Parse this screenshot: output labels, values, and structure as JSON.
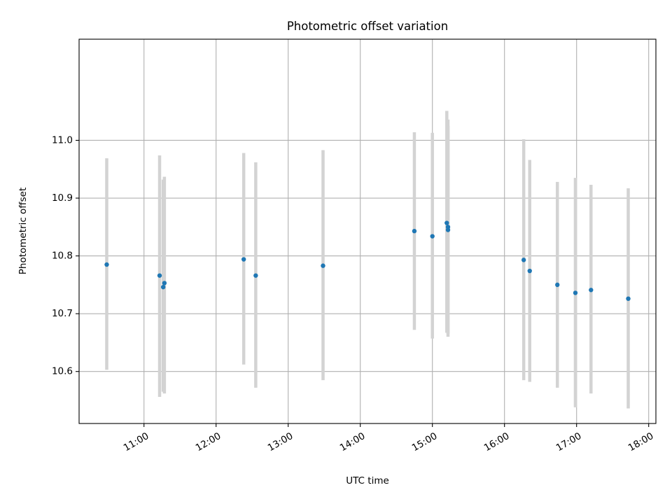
{
  "chart_data": {
    "type": "scatter",
    "title": "Photometric offset variation",
    "xlabel": "UTC time",
    "ylabel": "Photometric offset",
    "x_axis": "time (HH:MM, UTC)",
    "xlim": [
      "10:06",
      "18:06"
    ],
    "ylim": [
      10.51,
      11.175
    ],
    "x_ticks": [
      "11:00",
      "12:00",
      "13:00",
      "14:00",
      "15:00",
      "16:00",
      "17:00",
      "18:00"
    ],
    "y_ticks": [
      "10.6",
      "10.7",
      "10.8",
      "10.9",
      "11.0"
    ],
    "grid": true,
    "legend": "none",
    "point_color": "#1f77b4",
    "errorbar_color": "#d3d3d3",
    "points": [
      {
        "x": "10:29",
        "y": 10.785,
        "y_low": 10.603,
        "y_high": 10.969
      },
      {
        "x": "11:13",
        "y": 10.766,
        "y_low": 10.556,
        "y_high": 10.974
      },
      {
        "x": "11:16",
        "y": 10.746,
        "y_low": 10.565,
        "y_high": 10.932
      },
      {
        "x": "11:17",
        "y": 10.753,
        "y_low": 10.562,
        "y_high": 10.937
      },
      {
        "x": "12:23",
        "y": 10.794,
        "y_low": 10.612,
        "y_high": 10.978
      },
      {
        "x": "12:33",
        "y": 10.766,
        "y_low": 10.572,
        "y_high": 10.962
      },
      {
        "x": "13:29",
        "y": 10.783,
        "y_low": 10.585,
        "y_high": 10.983
      },
      {
        "x": "14:45",
        "y": 10.843,
        "y_low": 10.672,
        "y_high": 11.014
      },
      {
        "x": "15:00",
        "y": 10.834,
        "y_low": 10.657,
        "y_high": 11.013
      },
      {
        "x": "15:12",
        "y": 10.857,
        "y_low": 10.667,
        "y_high": 11.051
      },
      {
        "x": "15:13",
        "y": 10.845,
        "y_low": 10.66,
        "y_high": 11.036
      },
      {
        "x": "15:13",
        "y": 10.85,
        "y_low": 10.665,
        "y_high": 11.025
      },
      {
        "x": "16:16",
        "y": 10.793,
        "y_low": 10.585,
        "y_high": 11.002
      },
      {
        "x": "16:21",
        "y": 10.774,
        "y_low": 10.582,
        "y_high": 10.966
      },
      {
        "x": "16:44",
        "y": 10.75,
        "y_low": 10.572,
        "y_high": 10.928
      },
      {
        "x": "16:59",
        "y": 10.736,
        "y_low": 10.538,
        "y_high": 10.935
      },
      {
        "x": "17:12",
        "y": 10.741,
        "y_low": 10.562,
        "y_high": 10.923
      },
      {
        "x": "17:43",
        "y": 10.726,
        "y_low": 10.536,
        "y_high": 10.917
      }
    ]
  }
}
